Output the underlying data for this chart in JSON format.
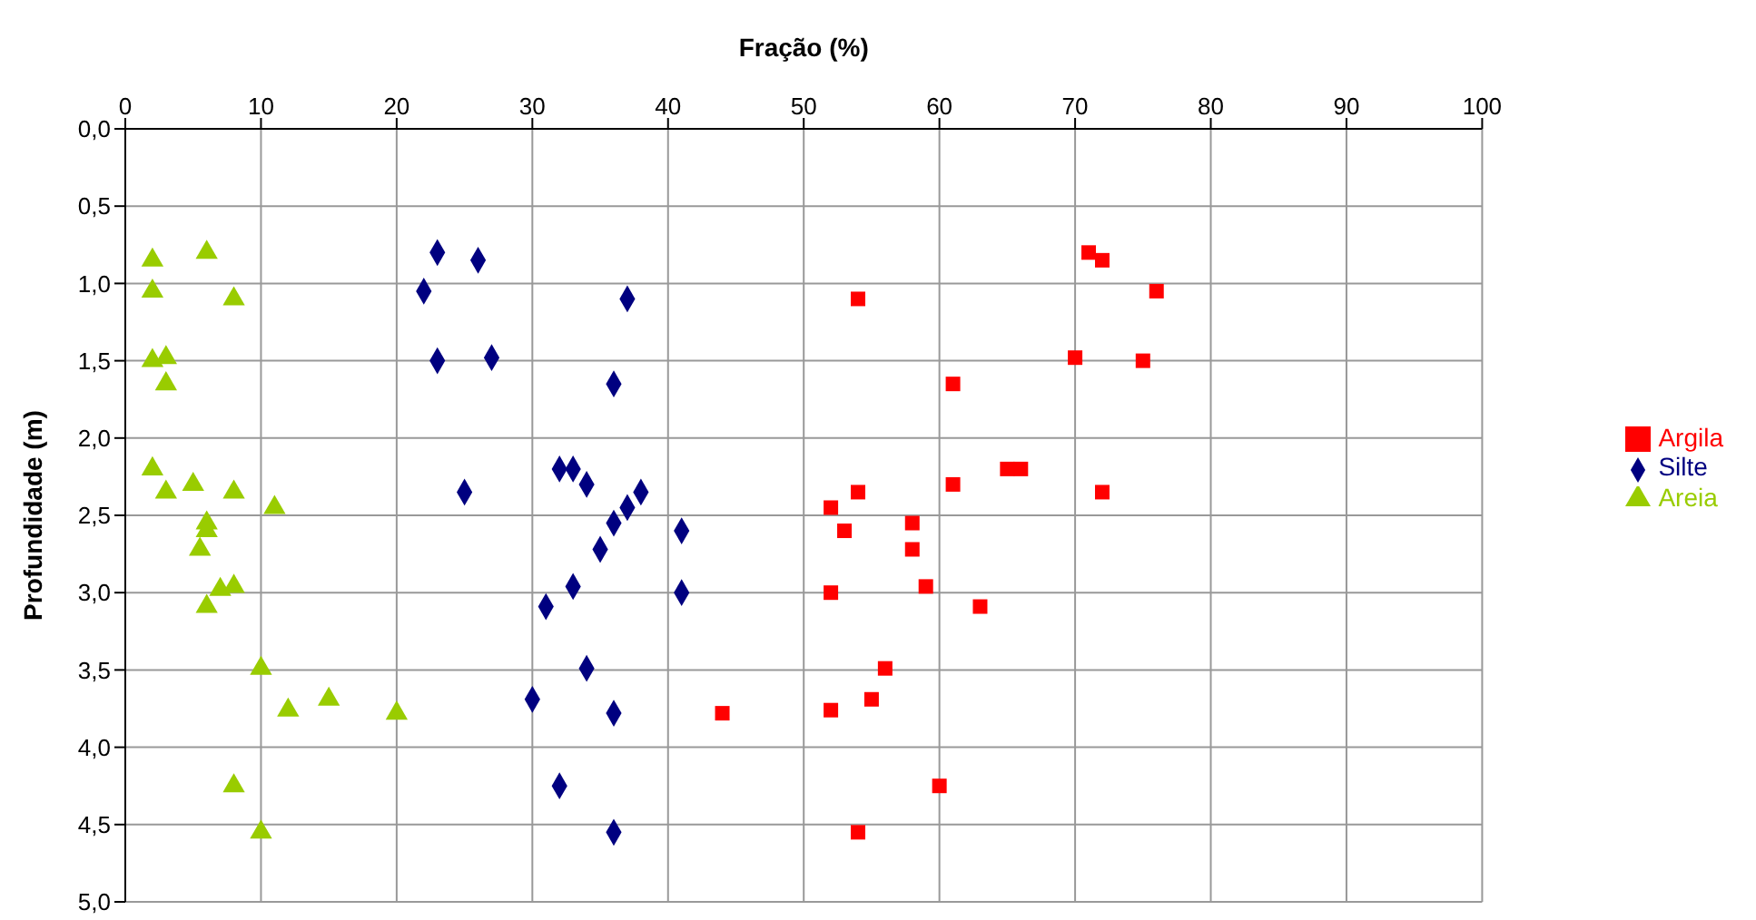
{
  "chart_data": {
    "type": "scatter",
    "xlabel": "Fração (%)",
    "ylabel": "Profundidade (m)",
    "xlim": [
      0,
      100
    ],
    "xticks": [
      0,
      10,
      20,
      30,
      40,
      50,
      60,
      70,
      80,
      90,
      100
    ],
    "ylim": [
      5,
      0
    ],
    "yticks": [
      {
        "value": 0,
        "label": "0,0"
      },
      {
        "value": 0.5,
        "label": "0,5"
      },
      {
        "value": 1,
        "label": "1,0"
      },
      {
        "value": 1.5,
        "label": "1,5"
      },
      {
        "value": 2,
        "label": "2,0"
      },
      {
        "value": 2.5,
        "label": "2,5"
      },
      {
        "value": 3,
        "label": "3,0"
      },
      {
        "value": 3.5,
        "label": "3,5"
      },
      {
        "value": 4,
        "label": "4,0"
      },
      {
        "value": 4.5,
        "label": "4,5"
      },
      {
        "value": 5,
        "label": "5,0"
      }
    ],
    "grid": true,
    "legend": "right",
    "series": [
      {
        "name": "Argila",
        "color": "#ff0000",
        "marker": "square",
        "x": [
          71,
          72,
          76,
          54,
          70,
          75,
          61,
          65,
          66,
          61,
          72,
          54,
          52,
          53,
          58,
          58,
          52,
          59,
          63,
          56,
          55,
          52,
          44,
          60,
          54
        ],
        "values": [
          0.8,
          0.85,
          1.05,
          1.1,
          1.48,
          1.5,
          1.65,
          2.2,
          2.2,
          2.3,
          2.35,
          2.35,
          2.45,
          2.6,
          2.55,
          2.72,
          3.0,
          2.96,
          3.09,
          3.49,
          3.69,
          3.76,
          3.78,
          4.25,
          4.55
        ]
      },
      {
        "name": "Silte",
        "color": "#000080",
        "marker": "diamond",
        "x": [
          23,
          26,
          22,
          37,
          23,
          27,
          36,
          32,
          33,
          34,
          25,
          38,
          37,
          36,
          41,
          35,
          33,
          41,
          31,
          34,
          30,
          null,
          36,
          32,
          36
        ],
        "values": [
          0.8,
          0.85,
          1.05,
          1.1,
          1.5,
          1.48,
          1.65,
          2.2,
          2.2,
          2.3,
          2.35,
          2.35,
          2.45,
          2.55,
          2.6,
          2.72,
          2.96,
          3.0,
          3.09,
          3.49,
          3.69,
          null,
          3.78,
          4.25,
          4.55
        ]
      },
      {
        "name": "Areia",
        "color": "#99cc00",
        "marker": "triangle",
        "x": [
          2,
          6,
          2,
          8,
          2,
          3,
          3,
          2,
          5,
          3,
          8,
          11,
          6,
          6,
          5.5,
          7,
          8,
          6,
          10,
          15,
          12,
          20,
          8,
          10
        ],
        "values": [
          0.85,
          0.8,
          1.05,
          1.1,
          1.5,
          1.48,
          1.65,
          2.2,
          2.3,
          2.35,
          2.35,
          2.45,
          2.55,
          2.6,
          2.72,
          2.98,
          2.96,
          3.09,
          3.49,
          3.69,
          3.76,
          3.78,
          4.25,
          4.55
        ]
      }
    ]
  }
}
